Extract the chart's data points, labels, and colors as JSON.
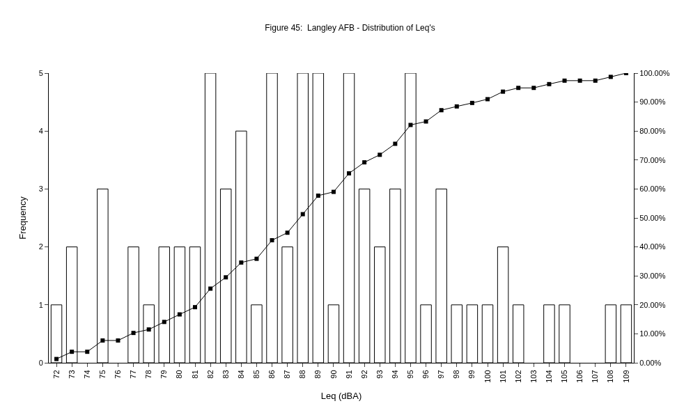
{
  "chart_data": {
    "type": "bar",
    "title": "Figure 45:  Langley AFB - Distribution of Leq's",
    "xlabel": "Leq (dBA)",
    "ylabel": "Frequency",
    "categories": [
      "72",
      "73",
      "74",
      "75",
      "76",
      "77",
      "78",
      "79",
      "80",
      "81",
      "82",
      "83",
      "84",
      "85",
      "86",
      "87",
      "88",
      "89",
      "90",
      "91",
      "92",
      "93",
      "94",
      "95",
      "96",
      "97",
      "98",
      "99",
      "100",
      "101",
      "102",
      "103",
      "104",
      "105",
      "106",
      "107",
      "108",
      "109"
    ],
    "series": [
      {
        "color": "#ffffff",
        "values": [
          1,
          2,
          0,
          3,
          0,
          2,
          1,
          2,
          2,
          2,
          5,
          3,
          4,
          1,
          5,
          2,
          5,
          5,
          1,
          5,
          3,
          2,
          3,
          5,
          1,
          3,
          1,
          1,
          1,
          2,
          1,
          0,
          1,
          1,
          0,
          0,
          1,
          1
        ]
      },
      {
        "type": "line",
        "axis": "y2",
        "color": "#000000",
        "marker": "square",
        "values": [
          1.3,
          3.8,
          3.8,
          7.7,
          7.7,
          10.3,
          11.5,
          14.1,
          16.7,
          19.2,
          25.6,
          29.5,
          34.6,
          35.9,
          42.3,
          44.9,
          51.3,
          57.7,
          59.0,
          65.4,
          69.2,
          71.8,
          75.6,
          82.1,
          83.3,
          87.2,
          88.5,
          89.7,
          91.0,
          93.6,
          94.9,
          94.9,
          96.2,
          97.4,
          97.4,
          97.4,
          98.7,
          100.0
        ]
      }
    ],
    "ylim": [
      0,
      5
    ],
    "yticks": [
      0,
      1,
      2,
      3,
      4,
      5
    ],
    "y2lim": [
      0,
      100
    ],
    "y2ticks": [
      {
        "value": 0,
        "label": "0.00%"
      },
      {
        "value": 10,
        "label": "10.00%"
      },
      {
        "value": 20,
        "label": "20.00%"
      },
      {
        "value": 30,
        "label": "30.00%"
      },
      {
        "value": 40,
        "label": "40.00%"
      },
      {
        "value": 50,
        "label": "50.00%"
      },
      {
        "value": 60,
        "label": "60.00%"
      },
      {
        "value": 70,
        "label": "70.00%"
      },
      {
        "value": 80,
        "label": "80.00%"
      },
      {
        "value": 90,
        "label": "90.00%"
      },
      {
        "value": 100,
        "label": "100.00%"
      }
    ],
    "tick_labels": true
  }
}
